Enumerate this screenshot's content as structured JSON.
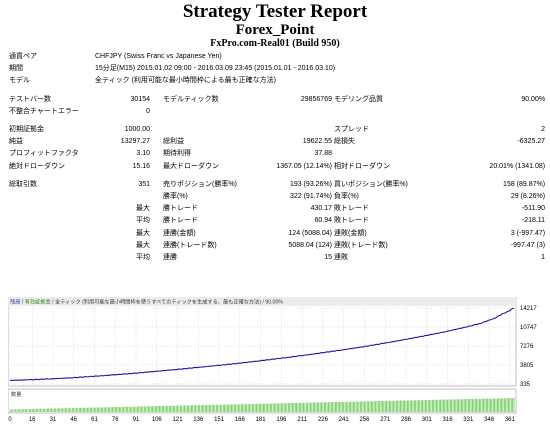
{
  "header": {
    "title": "Strategy Tester Report",
    "name": "Forex_Point",
    "server": "FxPro.com-Real01 (Build 950)"
  },
  "report": {
    "currency_pair_label": "通貨ペア",
    "currency_pair_value": "CHFJPY (Swiss Franc vs Japanese Yen)",
    "period_label": "期間",
    "period_value": "15分足(M15) 2015.01.02 09:00 - 2016.03.09 23:45 (2015.01.01 - 2016.03.10)",
    "model_label": "モデル",
    "model_value": "全ティック (利用可能な最小時間枠による最も正確な方法)",
    "bars_label": "テストバー数",
    "bars_value": "30154",
    "ticks_label": "モデルティック数",
    "ticks_value": "29856769",
    "quality_label": "モデリング品質",
    "quality_value": "90.00%",
    "mismatch_label": "不整合チャートエラー",
    "mismatch_value": "0",
    "deposit_label": "初期証拠金",
    "deposit_value": "1000.00",
    "spread_label": "スプレッド",
    "spread_value": "2",
    "net_profit_label": "純益",
    "net_profit_value": "13297.27",
    "gross_profit_label": "総利益",
    "gross_profit_value": "19622.55",
    "gross_loss_label": "総損失",
    "gross_loss_value": "-6325.27",
    "profit_factor_label": "プロフィットファクタ",
    "profit_factor_value": "3.10",
    "expected_payoff_label": "期待利得",
    "expected_payoff_value": "37.88",
    "abs_dd_label": "絶対ドローダウン",
    "abs_dd_value": "15.16",
    "max_dd_label": "最大ドローダウン",
    "max_dd_value": "1367.05 (12.14%)",
    "rel_dd_label": "相対ドローダウン",
    "rel_dd_value": "20.01% (1341.08)",
    "total_trades_label": "総取引数",
    "total_trades_value": "351",
    "short_label": "売りポジション(勝率%)",
    "short_value": "193 (93.26%)",
    "long_label": "買いポジション(勝率%)",
    "long_value": "158 (89.87%)",
    "win_pct_label": "勝率(%)",
    "win_pct_value": "322 (91.74%)",
    "loss_pct_label": "負率(%)",
    "loss_pct_value": "29 (8.26%)",
    "largest_label": "最大",
    "largest_win_label": "勝トレード",
    "largest_win_value": "430.17",
    "largest_loss_label": "敗トレード",
    "largest_loss_value": "-511.90",
    "average_label": "平均",
    "average_win_label": "勝トレード",
    "average_win_value": "60.94",
    "average_loss_label": "敗トレード",
    "average_loss_value": "-218.11",
    "max_consec_label": "最大",
    "max_consec_win_label": "連勝(金額)",
    "max_consec_win_value": "124 (5088.04)",
    "max_consec_loss_label": "連敗(金額)",
    "max_consec_loss_value": "3 (-997.47)",
    "max_consec_profit_label": "最大",
    "max_consec_profit_win_label": "連勝(トレード数)",
    "max_consec_profit_win_value": "5088.04 (124)",
    "max_consec_profit_loss_label": "連敗(トレード数)",
    "max_consec_profit_loss_value": "-997.47 (3)",
    "avg_consec_label": "平均",
    "avg_consec_win_label": "連勝",
    "avg_consec_win_value": "15",
    "avg_consec_loss_label": "連敗",
    "avg_consec_loss_value": "1"
  },
  "chart": {
    "header_title": "残高",
    "header_group": "有効証拠金",
    "header_model": "全ティック (利用可能な最小時間枠を使うすべてのティックを生成する、最も正確な方法)",
    "header_quality": "90.00%",
    "volume_label": "数量",
    "line_color": "#1a1aa6",
    "volume_color": "#55c03c"
  },
  "chart_data": {
    "type": "line",
    "title": "",
    "xlabel": "",
    "ylabel": "",
    "ylim": [
      335,
      14217
    ],
    "yticks": [
      335,
      3805,
      7276,
      10747,
      14217
    ],
    "xticks": [
      0,
      16,
      31,
      46,
      61,
      76,
      91,
      106,
      121,
      136,
      151,
      166,
      181,
      196,
      211,
      226,
      241,
      256,
      271,
      286,
      301,
      316,
      331,
      346,
      361
    ],
    "xlim": [
      0,
      364
    ],
    "series": [
      {
        "values": [
          [
            0,
            1000
          ],
          [
            15,
            1120
          ],
          [
            30,
            1280
          ],
          [
            45,
            1480
          ],
          [
            60,
            1730
          ],
          [
            75,
            2000
          ],
          [
            90,
            2300
          ],
          [
            105,
            2640
          ],
          [
            120,
            2990
          ],
          [
            135,
            3350
          ],
          [
            150,
            3720
          ],
          [
            165,
            4120
          ],
          [
            180,
            4560
          ],
          [
            195,
            5020
          ],
          [
            210,
            5500
          ],
          [
            225,
            6020
          ],
          [
            240,
            6560
          ],
          [
            255,
            7140
          ],
          [
            270,
            7770
          ],
          [
            285,
            8440
          ],
          [
            300,
            9160
          ],
          [
            315,
            9920
          ],
          [
            330,
            10780
          ],
          [
            340,
            11420
          ],
          [
            350,
            12350
          ],
          [
            355,
            13050
          ],
          [
            360,
            13640
          ],
          [
            364,
            14217
          ]
        ]
      }
    ],
    "volume_range": [
      0,
      364
    ]
  }
}
